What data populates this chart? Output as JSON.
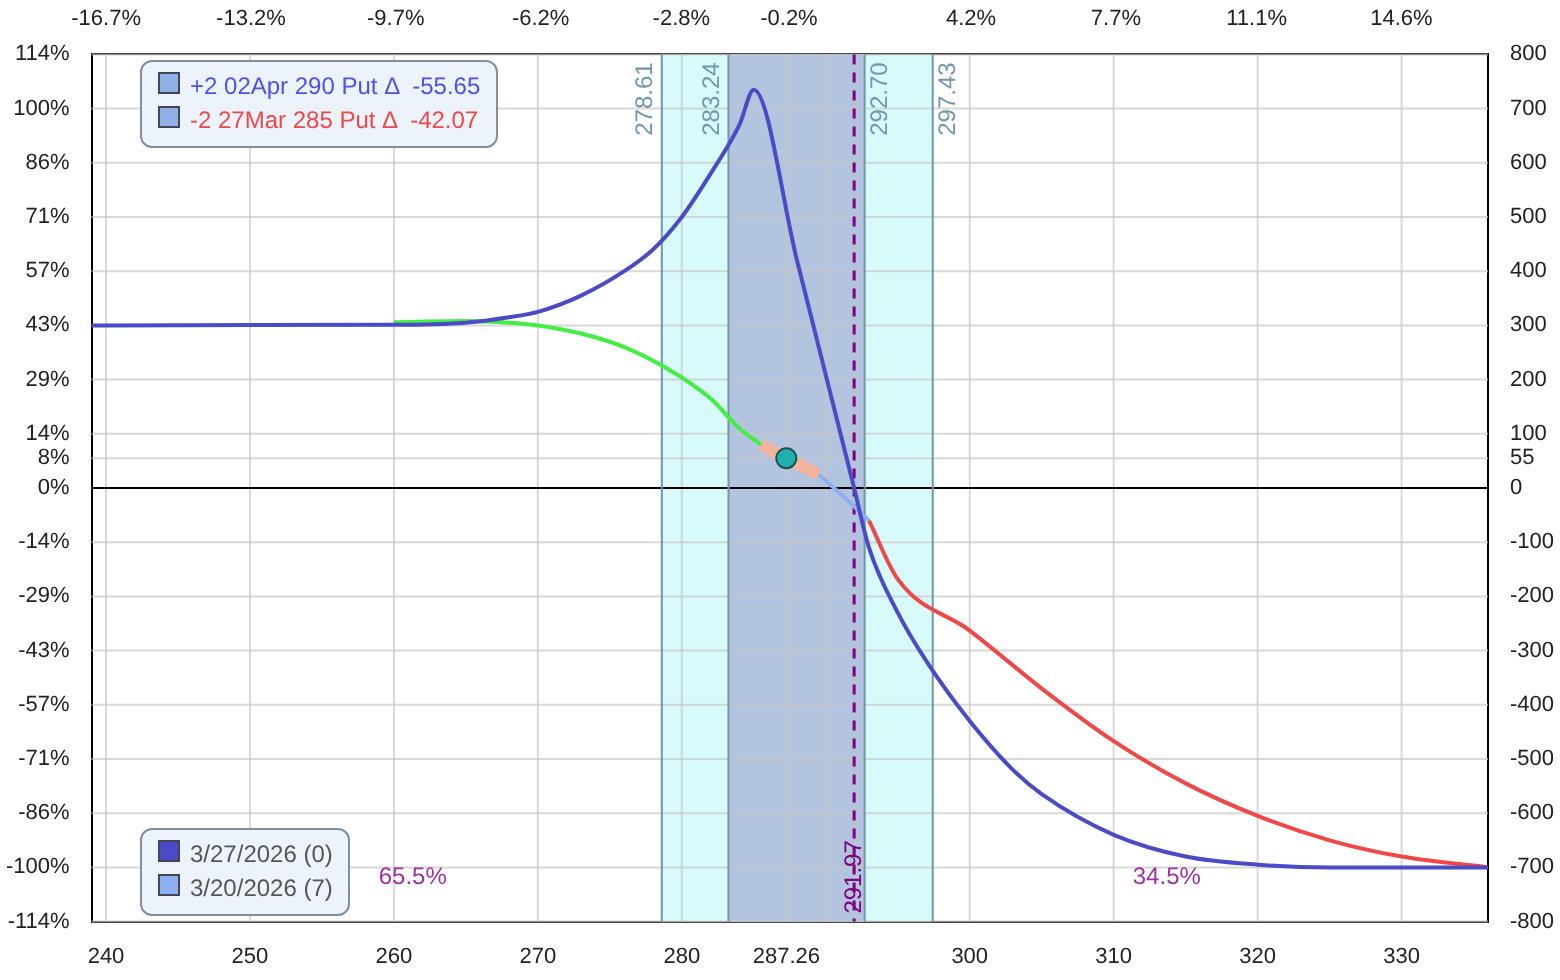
{
  "chart_data": {
    "type": "line",
    "xlim": [
      239,
      336
    ],
    "xticks": [
      240,
      250,
      260,
      270,
      280,
      {
        "value": 287.26,
        "label": "287.26"
      },
      {
        "value": 290,
        "label": null
      },
      300,
      310,
      320,
      330
    ],
    "x2lim": [
      -17.05,
      16.69
    ],
    "x2ticks": [
      {
        "value": -16.7,
        "label": "-16.7%"
      },
      {
        "value": -13.2,
        "label": "-13.2%"
      },
      {
        "value": -9.7,
        "label": "-9.7%"
      },
      {
        "value": -6.2,
        "label": "-6.2%"
      },
      {
        "value": -2.8,
        "label": "-2.8%"
      },
      {
        "value": -0.2,
        "label": "-0.2%"
      },
      {
        "value": 0.7,
        "label": null
      },
      {
        "value": 4.2,
        "label": "4.2%"
      },
      {
        "value": 7.7,
        "label": "7.7%"
      },
      {
        "value": 11.1,
        "label": "11.1%"
      },
      {
        "value": 14.6,
        "label": "14.6%"
      }
    ],
    "ylim": [
      -114.29,
      114.29
    ],
    "yticks": [
      {
        "value": 114.29,
        "label": "114%"
      },
      {
        "value": 100,
        "label": "100%"
      },
      {
        "value": 85.71,
        "label": "86%"
      },
      {
        "value": 71.43,
        "label": "71%"
      },
      {
        "value": 57.14,
        "label": "57%"
      },
      {
        "value": 42.86,
        "label": "43%"
      },
      {
        "value": 28.57,
        "label": "29%"
      },
      {
        "value": 14.29,
        "label": "14%"
      },
      {
        "value": 7.86,
        "label": "8%"
      },
      {
        "value": 0,
        "label": "0%"
      },
      {
        "value": -14.29,
        "label": "-14%"
      },
      {
        "value": -28.57,
        "label": "-29%"
      },
      {
        "value": -42.86,
        "label": "-43%"
      },
      {
        "value": -57.14,
        "label": "-57%"
      },
      {
        "value": -71.43,
        "label": "-71%"
      },
      {
        "value": -85.71,
        "label": "-86%"
      },
      {
        "value": -100,
        "label": "-100%"
      },
      {
        "value": -114.29,
        "label": "-114%"
      }
    ],
    "y2lim": [
      -800,
      800
    ],
    "y2ticks": [
      800,
      700,
      600,
      500,
      400,
      300,
      200,
      100,
      55,
      0,
      -100,
      -200,
      -300,
      -400,
      -500,
      -600,
      -700,
      -800
    ],
    "grid": true,
    "legend": "bottom left",
    "bands": [
      {
        "axis": "x",
        "from": 278.61,
        "to": 297.43,
        "color": "#d8fafa"
      },
      {
        "axis": "x",
        "from": 283.24,
        "to": 292.7,
        "color": "#b2c4de"
      }
    ],
    "ref_lines": [
      {
        "axis": "x",
        "value": 278.61,
        "label": "278.61",
        "color": "#6f97ad"
      },
      {
        "axis": "x",
        "value": 283.24,
        "label": "283.24",
        "color": "#6f97ad"
      },
      {
        "axis": "x",
        "value": 292.7,
        "label": "292.70",
        "color": "#6f97ad"
      },
      {
        "axis": "x",
        "value": 297.43,
        "label": "297.43",
        "color": "#6f97ad"
      },
      {
        "axis": "x",
        "value": 291.97,
        "label": "291.97",
        "color": "#800080",
        "line_style": "dashed"
      }
    ],
    "annotations": [
      "+2 02Apr 290 Put Δ  -55.65",
      "-2 27Mar 285 Put Δ  -42.07",
      "65.5%",
      "34.5%"
    ],
    "series": [
      {
        "name": "3/27/2026 (0)",
        "color": "#4b4bc8",
        "axis": "y2",
        "x": [
          239,
          260,
          265,
          268,
          270,
          273,
          276,
          278,
          280,
          282,
          284,
          285,
          288,
          291.97,
          293,
          295,
          297,
          300,
          303,
          305,
          310,
          315,
          320,
          325,
          336
        ],
        "values": [
          300,
          301,
          305,
          315,
          325,
          355,
          400,
          440,
          500,
          580,
          670,
          735,
          420,
          0,
          -110,
          -230,
          -320,
          -430,
          -520,
          -565,
          -640,
          -680,
          -695,
          -700,
          -700
        ]
      },
      {
        "color": "#44ee44",
        "axis": "y2",
        "x": [
          260,
          265,
          268,
          270,
          273,
          276,
          279,
          282,
          284,
          285.5
        ],
        "values": [
          306,
          308,
          305,
          300,
          285,
          260,
          220,
          165,
          110,
          80
        ]
      },
      {
        "color": "#f2b49c",
        "axis": "y2",
        "x": [
          285.5,
          287.26,
          289.5
        ],
        "values": [
          80,
          55,
          25
        ]
      },
      {
        "name": "3/20/2026 (7)",
        "color": "#8fb0f0",
        "axis": "y2",
        "x": [
          289.5,
          291,
          293
        ],
        "values": [
          25,
          -10,
          -60
        ]
      },
      {
        "color": "#f04848",
        "axis": "y2",
        "x": [
          293,
          295,
          300,
          305,
          310,
          315,
          320,
          325,
          330,
          336
        ],
        "values": [
          -60,
          -168,
          -263,
          -370,
          -467,
          -545,
          -605,
          -650,
          -680,
          -700
        ]
      },
      {
        "type": "scatter",
        "color": "#20b0b0",
        "axis": "y2",
        "marker": "circle",
        "x": [
          287.26
        ],
        "values": [
          55
        ]
      }
    ]
  }
}
